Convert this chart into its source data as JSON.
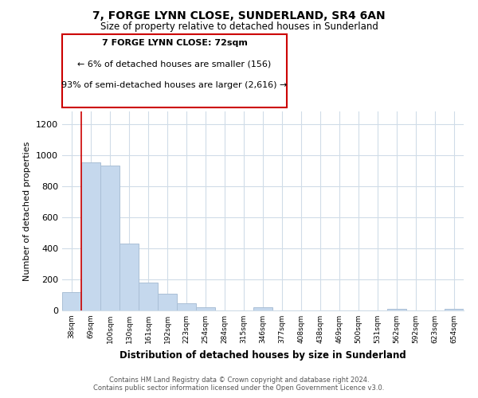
{
  "title": "7, FORGE LYNN CLOSE, SUNDERLAND, SR4 6AN",
  "subtitle": "Size of property relative to detached houses in Sunderland",
  "xlabel": "Distribution of detached houses by size in Sunderland",
  "ylabel": "Number of detached properties",
  "bin_labels": [
    "38sqm",
    "69sqm",
    "100sqm",
    "130sqm",
    "161sqm",
    "192sqm",
    "223sqm",
    "254sqm",
    "284sqm",
    "315sqm",
    "346sqm",
    "377sqm",
    "408sqm",
    "438sqm",
    "469sqm",
    "500sqm",
    "531sqm",
    "562sqm",
    "592sqm",
    "623sqm",
    "654sqm"
  ],
  "bar_values": [
    120,
    950,
    930,
    430,
    180,
    110,
    48,
    20,
    0,
    0,
    18,
    0,
    0,
    0,
    0,
    0,
    0,
    12,
    0,
    0,
    10
  ],
  "bar_color": "#c5d8ed",
  "bar_edge_color": "#aabfd6",
  "vline_color": "#cc0000",
  "ylim": [
    0,
    1280
  ],
  "yticks": [
    0,
    200,
    400,
    600,
    800,
    1000,
    1200
  ],
  "annotation_text_line1": "7 FORGE LYNN CLOSE: 72sqm",
  "annotation_text_line2": "← 6% of detached houses are smaller (156)",
  "annotation_text_line3": "93% of semi-detached houses are larger (2,616) →",
  "footer_line1": "Contains HM Land Registry data © Crown copyright and database right 2024.",
  "footer_line2": "Contains public sector information licensed under the Open Government Licence v3.0.",
  "background_color": "#ffffff",
  "grid_color": "#d0dce8"
}
